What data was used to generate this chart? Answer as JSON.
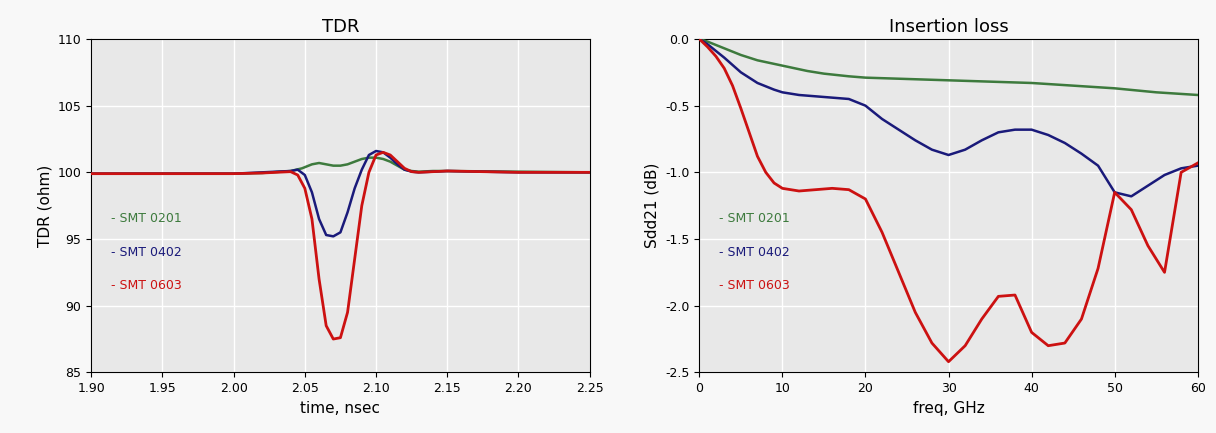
{
  "tdr": {
    "title": "TDR",
    "xlabel": "time, nsec",
    "ylabel": "TDR (ohm)",
    "xlim": [
      1.9,
      2.25
    ],
    "ylim": [
      85,
      110
    ],
    "yticks": [
      85,
      90,
      95,
      100,
      105,
      110
    ],
    "xticks": [
      1.9,
      1.95,
      2.0,
      2.05,
      2.1,
      2.15,
      2.2,
      2.25
    ],
    "colors": {
      "SMT 0201": "#3d7a3d",
      "SMT 0402": "#1a1a7a",
      "SMT 0603": "#cc1111"
    },
    "smt0201_x": [
      1.9,
      1.95,
      2.0,
      2.02,
      2.04,
      2.048,
      2.055,
      2.06,
      2.065,
      2.07,
      2.075,
      2.08,
      2.085,
      2.09,
      2.095,
      2.1,
      2.105,
      2.11,
      2.115,
      2.12,
      2.125,
      2.13,
      2.14,
      2.15,
      2.2,
      2.25
    ],
    "smt0201_y": [
      99.9,
      99.9,
      99.9,
      99.95,
      100.1,
      100.3,
      100.6,
      100.7,
      100.6,
      100.5,
      100.5,
      100.6,
      100.8,
      101.0,
      101.1,
      101.1,
      101.0,
      100.8,
      100.5,
      100.2,
      100.1,
      100.05,
      100.1,
      100.1,
      100.05,
      100.0
    ],
    "smt0402_x": [
      1.9,
      1.95,
      2.0,
      2.02,
      2.04,
      2.045,
      2.05,
      2.055,
      2.06,
      2.065,
      2.07,
      2.075,
      2.08,
      2.085,
      2.09,
      2.095,
      2.1,
      2.105,
      2.11,
      2.115,
      2.12,
      2.125,
      2.13,
      2.14,
      2.15,
      2.2,
      2.25
    ],
    "smt0402_y": [
      99.9,
      99.9,
      99.9,
      100.0,
      100.1,
      100.2,
      99.8,
      98.5,
      96.5,
      95.3,
      95.2,
      95.5,
      97.0,
      98.8,
      100.2,
      101.3,
      101.6,
      101.5,
      101.1,
      100.6,
      100.2,
      100.05,
      100.0,
      100.05,
      100.1,
      100.0,
      100.0
    ],
    "smt0603_x": [
      1.9,
      1.95,
      2.0,
      2.02,
      2.04,
      2.045,
      2.05,
      2.055,
      2.06,
      2.065,
      2.07,
      2.075,
      2.08,
      2.085,
      2.09,
      2.095,
      2.1,
      2.105,
      2.11,
      2.115,
      2.12,
      2.125,
      2.13,
      2.14,
      2.15,
      2.2,
      2.25
    ],
    "smt0603_y": [
      99.9,
      99.9,
      99.9,
      99.95,
      100.05,
      99.8,
      98.8,
      96.5,
      92.0,
      88.5,
      87.5,
      87.6,
      89.5,
      93.5,
      97.5,
      100.0,
      101.3,
      101.5,
      101.3,
      100.8,
      100.3,
      100.05,
      100.0,
      100.05,
      100.1,
      100.0,
      100.0
    ]
  },
  "il": {
    "title": "Insertion loss",
    "xlabel": "freq, GHz",
    "ylabel": "Sdd21 (dB)",
    "xlim": [
      0,
      60
    ],
    "ylim": [
      -2.5,
      0.0
    ],
    "yticks": [
      0.0,
      -0.5,
      -1.0,
      -1.5,
      -2.0,
      -2.5
    ],
    "xticks": [
      0,
      10,
      20,
      30,
      40,
      50,
      60
    ],
    "colors": {
      "SMT 0201": "#3d7a3d",
      "SMT 0402": "#1a1a7a",
      "SMT 0603": "#cc1111"
    },
    "smt0201_x": [
      0,
      1,
      3,
      5,
      7,
      10,
      13,
      15,
      18,
      20,
      25,
      30,
      35,
      40,
      45,
      50,
      55,
      60
    ],
    "smt0201_y": [
      0.0,
      -0.02,
      -0.07,
      -0.12,
      -0.16,
      -0.2,
      -0.24,
      -0.26,
      -0.28,
      -0.29,
      -0.3,
      -0.31,
      -0.32,
      -0.33,
      -0.35,
      -0.37,
      -0.4,
      -0.42
    ],
    "smt0402_x": [
      0,
      1,
      3,
      5,
      7,
      9,
      10,
      12,
      14,
      16,
      18,
      20,
      22,
      24,
      26,
      28,
      30,
      32,
      34,
      36,
      38,
      40,
      42,
      44,
      46,
      48,
      50,
      52,
      54,
      56,
      58,
      60
    ],
    "smt0402_y": [
      0.0,
      -0.04,
      -0.14,
      -0.25,
      -0.33,
      -0.38,
      -0.4,
      -0.42,
      -0.43,
      -0.44,
      -0.45,
      -0.5,
      -0.6,
      -0.68,
      -0.76,
      -0.83,
      -0.87,
      -0.83,
      -0.76,
      -0.7,
      -0.68,
      -0.68,
      -0.72,
      -0.78,
      -0.86,
      -0.95,
      -1.15,
      -1.18,
      -1.1,
      -1.02,
      -0.97,
      -0.95
    ],
    "smt0603_x": [
      0,
      1,
      2,
      3,
      4,
      5,
      6,
      7,
      8,
      9,
      10,
      11,
      12,
      14,
      16,
      18,
      20,
      22,
      24,
      26,
      28,
      30,
      32,
      34,
      36,
      38,
      40,
      42,
      44,
      46,
      48,
      50,
      52,
      54,
      56,
      58,
      60
    ],
    "smt0603_y": [
      0.0,
      -0.06,
      -0.13,
      -0.22,
      -0.35,
      -0.52,
      -0.7,
      -0.88,
      -1.0,
      -1.08,
      -1.12,
      -1.13,
      -1.14,
      -1.13,
      -1.12,
      -1.13,
      -1.2,
      -1.45,
      -1.75,
      -2.05,
      -2.28,
      -2.42,
      -2.3,
      -2.1,
      -1.93,
      -1.92,
      -2.2,
      -2.3,
      -2.28,
      -2.1,
      -1.72,
      -1.15,
      -1.28,
      -1.55,
      -1.75,
      -1.0,
      -0.93
    ]
  },
  "fig_facecolor": "#f8f8f8",
  "plot_facecolor": "#e8e8e8",
  "grid_color": "#ffffff",
  "grid_linewidth": 1.0
}
